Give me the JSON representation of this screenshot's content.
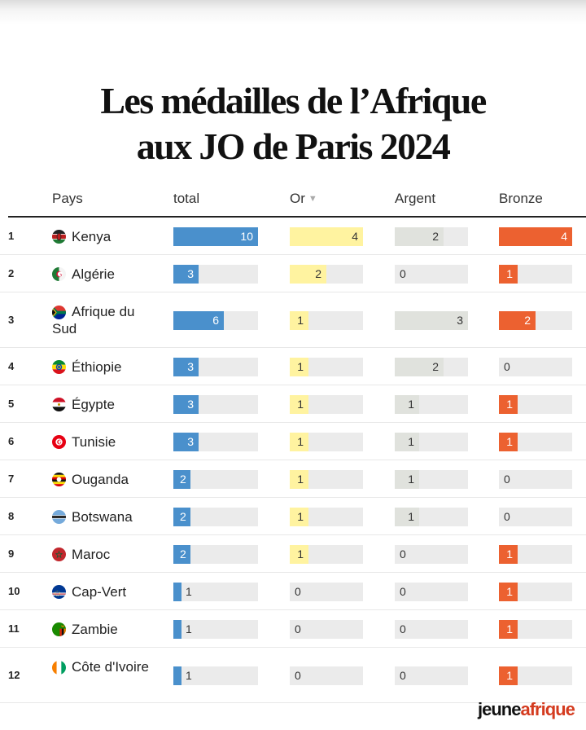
{
  "title": {
    "line1": "Les médailles de l’Afrique",
    "line2": "aux JO de Paris 2024"
  },
  "headers": {
    "country": "Pays",
    "total": "total",
    "gold": "Or",
    "silver": "Argent",
    "bronze": "Bronze"
  },
  "sort_icon": "▼",
  "brand": {
    "part1": "jeune",
    "part2": "afrique"
  },
  "colors": {
    "total": "#4a90cc",
    "gold": "#fff3a0",
    "silver": "#e0e2dd",
    "bronze": "#ec6130",
    "track": "#ebebeb"
  },
  "chart_data": {
    "type": "table",
    "columns": [
      "Pays",
      "total",
      "Or",
      "Argent",
      "Bronze"
    ],
    "rows": [
      {
        "rank": "1",
        "country": "Kenya",
        "total": 10,
        "gold": 4,
        "silver": 2,
        "bronze": 4
      },
      {
        "rank": "2",
        "country": "Algérie",
        "total": 3,
        "gold": 2,
        "silver": 0,
        "bronze": 1
      },
      {
        "rank": "3",
        "country": "Afrique du Sud",
        "total": 6,
        "gold": 1,
        "silver": 3,
        "bronze": 2
      },
      {
        "rank": "4",
        "country": "Éthiopie",
        "total": 3,
        "gold": 1,
        "silver": 2,
        "bronze": 0
      },
      {
        "rank": "5",
        "country": "Égypte",
        "total": 3,
        "gold": 1,
        "silver": 1,
        "bronze": 1
      },
      {
        "rank": "6",
        "country": "Tunisie",
        "total": 3,
        "gold": 1,
        "silver": 1,
        "bronze": 1
      },
      {
        "rank": "7",
        "country": "Ouganda",
        "total": 2,
        "gold": 1,
        "silver": 1,
        "bronze": 0
      },
      {
        "rank": "8",
        "country": "Botswana",
        "total": 2,
        "gold": 1,
        "silver": 1,
        "bronze": 0
      },
      {
        "rank": "9",
        "country": "Maroc",
        "total": 2,
        "gold": 1,
        "silver": 0,
        "bronze": 1
      },
      {
        "rank": "10",
        "country": "Cap-Vert",
        "total": 1,
        "gold": 0,
        "silver": 0,
        "bronze": 1
      },
      {
        "rank": "11",
        "country": "Zambie",
        "total": 1,
        "gold": 0,
        "silver": 0,
        "bronze": 1
      },
      {
        "rank": "12",
        "country": "Côte d'Ivoire",
        "total": 1,
        "gold": 0,
        "silver": 0,
        "bronze": 1
      }
    ],
    "scale_max": {
      "total": 10,
      "gold": 4,
      "silver": 3,
      "bronze": 4
    }
  }
}
